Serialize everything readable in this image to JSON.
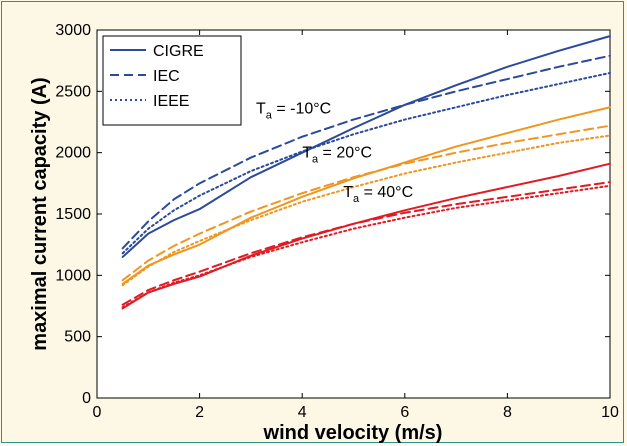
{
  "chart_data": {
    "type": "line",
    "xlabel": "wind velocity (m/s)",
    "ylabel": "maximal current capacity (A)",
    "xlim": [
      0,
      10
    ],
    "ylim": [
      0,
      3000
    ],
    "xticks": [
      0,
      2,
      4,
      6,
      8,
      10
    ],
    "yticks": [
      0,
      500,
      1000,
      1500,
      2000,
      2500,
      3000
    ],
    "legend": {
      "placement": "top-left",
      "entries": [
        {
          "label": "CIGRE",
          "style": "solid"
        },
        {
          "label": "IEC",
          "style": "dashed"
        },
        {
          "label": "IEEE",
          "style": "dotted"
        }
      ]
    },
    "colors": {
      "ta_minus10": "#2b4a9c",
      "ta_20": "#f0961e",
      "ta_40": "#e01b24"
    },
    "x": [
      0.5,
      1,
      1.5,
      2,
      3,
      4,
      5,
      6,
      7,
      8,
      9,
      10
    ],
    "groups": [
      {
        "annotation": {
          "prefix": "T",
          "sub": "a",
          "suffix": " = -10°C",
          "at": [
            3.1,
            2320
          ]
        },
        "color": "#2b4a9c",
        "series": [
          {
            "method": "CIGRE",
            "style": "solid",
            "values": [
              1150,
              1340,
              1450,
              1540,
              1800,
              2000,
              2200,
              2390,
              2550,
              2700,
              2830,
              2950
            ]
          },
          {
            "method": "IEC",
            "style": "dashed",
            "values": [
              1220,
              1440,
              1620,
              1750,
              1960,
              2130,
              2270,
              2390,
              2500,
              2600,
              2700,
              2790
            ]
          },
          {
            "method": "IEEE",
            "style": "dotted",
            "values": [
              1180,
              1380,
              1530,
              1650,
              1850,
              2010,
              2150,
              2270,
              2370,
              2470,
              2560,
              2650
            ]
          }
        ]
      },
      {
        "annotation": {
          "prefix": "T",
          "sub": "a",
          "suffix": " = 20°C",
          "at": [
            4.0,
            1960
          ]
        },
        "color": "#f0961e",
        "series": [
          {
            "method": "CIGRE",
            "style": "solid",
            "values": [
              930,
              1080,
              1170,
              1250,
              1470,
              1640,
              1790,
              1920,
              2050,
              2160,
              2270,
              2370
            ]
          },
          {
            "method": "IEC",
            "style": "dashed",
            "values": [
              960,
              1120,
              1240,
              1340,
              1520,
              1670,
              1800,
              1910,
              2000,
              2080,
              2150,
              2220
            ]
          },
          {
            "method": "IEEE",
            "style": "dotted",
            "values": [
              920,
              1070,
              1190,
              1280,
              1450,
              1600,
              1720,
              1830,
              1920,
              2000,
              2080,
              2140
            ]
          }
        ]
      },
      {
        "annotation": {
          "prefix": "T",
          "sub": "a",
          "suffix": " = 40°C",
          "at": [
            4.8,
            1640
          ]
        },
        "color": "#e01b24",
        "series": [
          {
            "method": "CIGRE",
            "style": "solid",
            "values": [
              730,
              860,
              930,
              990,
              1160,
              1300,
              1420,
              1530,
              1630,
              1720,
              1810,
              1910
            ]
          },
          {
            "method": "IEC",
            "style": "dashed",
            "values": [
              760,
              880,
              960,
              1030,
              1180,
              1310,
              1420,
              1510,
              1580,
              1640,
              1700,
              1760
            ]
          },
          {
            "method": "IEEE",
            "style": "dotted",
            "values": [
              740,
              860,
              940,
              1000,
              1150,
              1270,
              1380,
              1470,
              1550,
              1610,
              1670,
              1730
            ]
          }
        ]
      }
    ]
  }
}
